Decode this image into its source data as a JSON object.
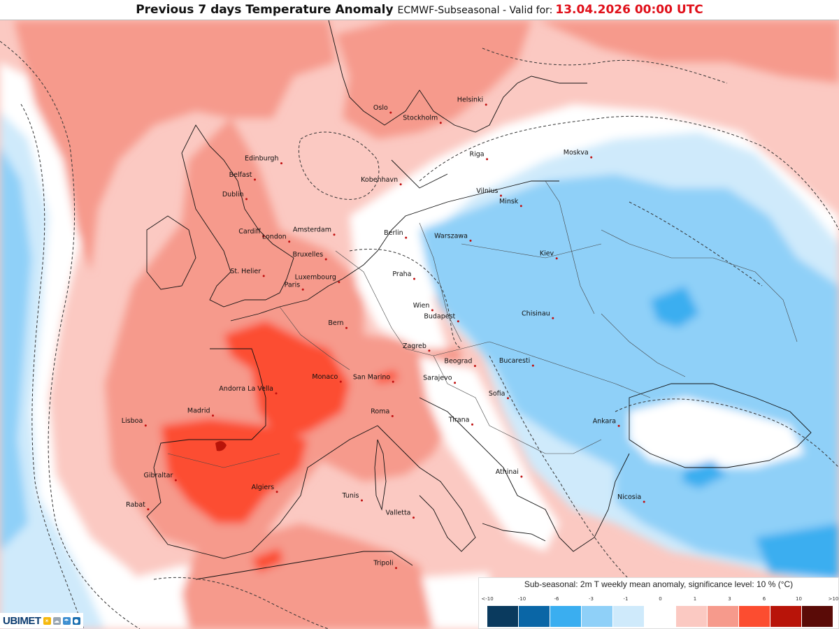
{
  "header": {
    "title": "Previous 7 days Temperature Anomaly",
    "model": "ECMWF-Subseasonal - ",
    "valid_label": "Valid for:",
    "valid_time": "13.04.2026 00:00 UTC"
  },
  "cities": [
    {
      "name": "Oslo",
      "lon": 10.75,
      "lat": 59.91
    },
    {
      "name": "Stockholm",
      "lon": 18.07,
      "lat": 59.33
    },
    {
      "name": "Helsinki",
      "lon": 24.94,
      "lat": 60.17
    },
    {
      "name": "Riga",
      "lon": 24.1,
      "lat": 56.95
    },
    {
      "name": "Moskva",
      "lon": 37.62,
      "lat": 55.75
    },
    {
      "name": "Kobenhavn",
      "lon": 12.57,
      "lat": 55.68
    },
    {
      "name": "Vilnius",
      "lon": 25.28,
      "lat": 54.69
    },
    {
      "name": "Minsk",
      "lon": 27.56,
      "lat": 53.9
    },
    {
      "name": "Edinburgh",
      "lon": -3.19,
      "lat": 55.95
    },
    {
      "name": "Belfast",
      "lon": -5.93,
      "lat": 54.6
    },
    {
      "name": "Dublin",
      "lon": -6.26,
      "lat": 53.35
    },
    {
      "name": "Amsterdam",
      "lon": 4.9,
      "lat": 52.37
    },
    {
      "name": "Berlin",
      "lon": 13.4,
      "lat": 52.52
    },
    {
      "name": "Warszawa",
      "lon": 21.01,
      "lat": 52.23
    },
    {
      "name": "Cardiff",
      "lon": -3.18,
      "lat": 51.48
    },
    {
      "name": "London",
      "lon": -0.13,
      "lat": 51.51
    },
    {
      "name": "Bruxelles",
      "lon": 4.35,
      "lat": 50.85
    },
    {
      "name": "Praha",
      "lon": 14.42,
      "lat": 50.08
    },
    {
      "name": "Kiev",
      "lon": 30.52,
      "lat": 50.45
    },
    {
      "name": "Luxembourg",
      "lon": 6.13,
      "lat": 49.61
    },
    {
      "name": "St. Helier",
      "lon": -2.1,
      "lat": 49.19
    },
    {
      "name": "Paris",
      "lon": 2.35,
      "lat": 48.86
    },
    {
      "name": "Wien",
      "lon": 16.37,
      "lat": 48.21
    },
    {
      "name": "Budapest",
      "lon": 19.04,
      "lat": 47.5
    },
    {
      "name": "Chisinau",
      "lon": 28.86,
      "lat": 47.01
    },
    {
      "name": "Bern",
      "lon": 7.45,
      "lat": 46.95
    },
    {
      "name": "Zagreb",
      "lon": 15.98,
      "lat": 45.81
    },
    {
      "name": "Beograd",
      "lon": 20.46,
      "lat": 44.79
    },
    {
      "name": "Bucaresti",
      "lon": 26.1,
      "lat": 44.43
    },
    {
      "name": "Monaco",
      "lon": 7.42,
      "lat": 43.74
    },
    {
      "name": "San Marino",
      "lon": 12.45,
      "lat": 43.94
    },
    {
      "name": "Sarajevo",
      "lon": 18.41,
      "lat": 43.86
    },
    {
      "name": "Sofia",
      "lon": 23.32,
      "lat": 42.7
    },
    {
      "name": "Andorra La Vella",
      "lon": 1.52,
      "lat": 42.51
    },
    {
      "name": "Roma",
      "lon": 12.5,
      "lat": 41.9
    },
    {
      "name": "Tirana",
      "lon": 19.82,
      "lat": 41.33
    },
    {
      "name": "Madrid",
      "lon": -3.7,
      "lat": 40.42
    },
    {
      "name": "Ankara",
      "lon": 32.85,
      "lat": 39.93
    },
    {
      "name": "Lisboa",
      "lon": -9.14,
      "lat": 38.72
    },
    {
      "name": "Athinai",
      "lon": 23.73,
      "lat": 37.98
    },
    {
      "name": "Algiers",
      "lon": 3.06,
      "lat": 36.75
    },
    {
      "name": "Tunis",
      "lon": 10.18,
      "lat": 36.81
    },
    {
      "name": "Gibraltar",
      "lon": -5.35,
      "lat": 36.14
    },
    {
      "name": "Valletta",
      "lon": 14.51,
      "lat": 35.9
    },
    {
      "name": "Nicosia",
      "lon": 33.38,
      "lat": 35.19
    },
    {
      "name": "Rabat",
      "lon": -6.84,
      "lat": 34.02
    },
    {
      "name": "Tripoli",
      "lon": 13.18,
      "lat": 32.89
    }
  ],
  "legend": {
    "title": "Sub-seasonal: 2m T weekly mean anomaly, significance level: 10 % (°C)",
    "ticks": [
      "<-10",
      "-10",
      "-6",
      "-3",
      "-1",
      "0",
      "1",
      "3",
      "6",
      "10",
      ">10"
    ],
    "colors": [
      "#0a3a5e",
      "#0a66a6",
      "#3aaef0",
      "#8fd0f8",
      "#cfeafb",
      "#ffffff",
      "#fbc9c2",
      "#f69a8c",
      "#fc4d30",
      "#b81409",
      "#5a0b07"
    ]
  },
  "palette": {
    "strong_warm": "#fc4d30",
    "warm": "#f69a8c",
    "mild_warm": "#fbc9c2",
    "mild_cold": "#cfeafb",
    "cold": "#8fd0f8",
    "strong_cold": "#3aaef0",
    "very_warm": "#b81409"
  },
  "brand": {
    "name": "UBIMET",
    "icon_names": [
      "sun-icon",
      "cloud-icon",
      "rain-icon",
      "drop-icon"
    ]
  }
}
